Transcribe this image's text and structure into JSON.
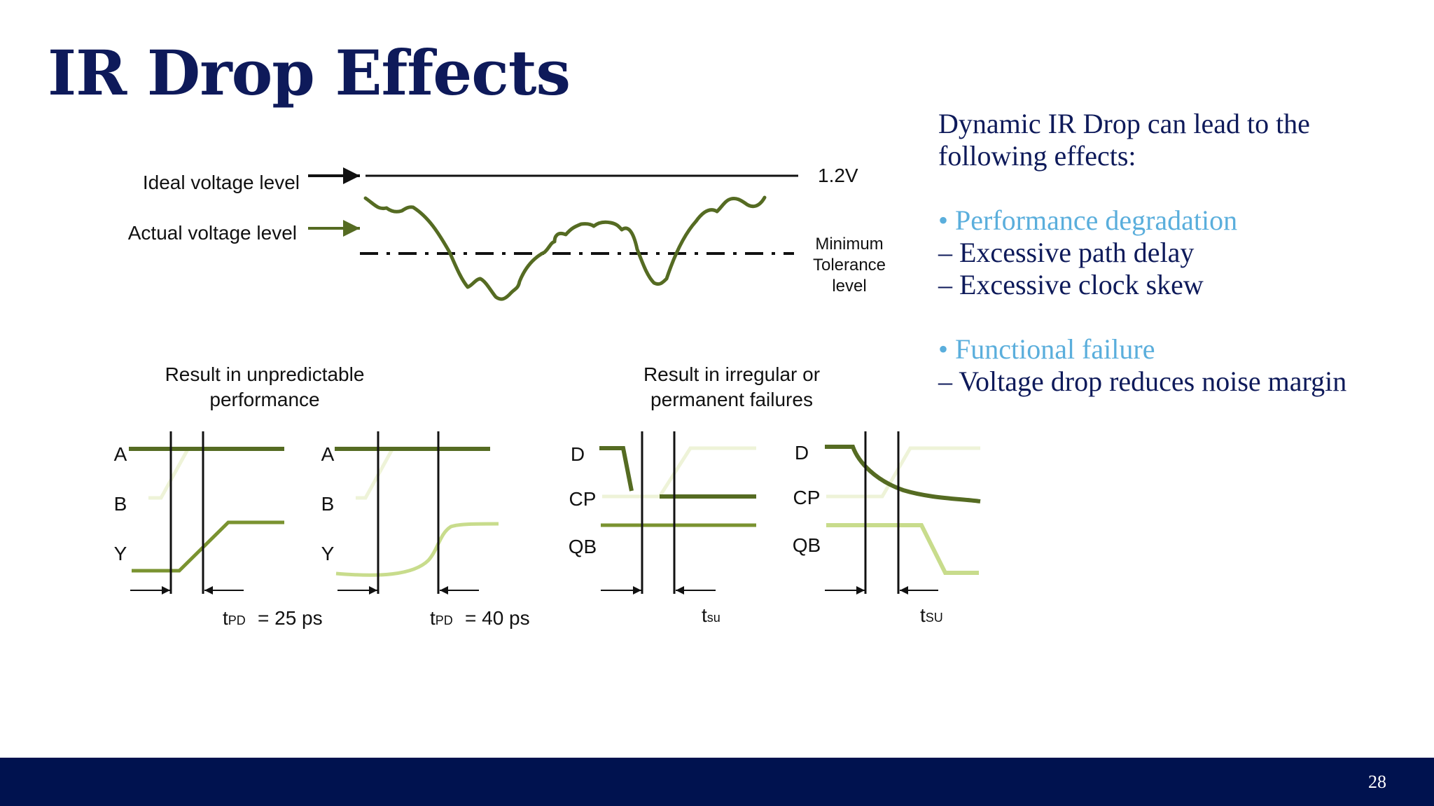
{
  "slide": {
    "title": "IR Drop Effects",
    "page_number": "28"
  },
  "voltage_diagram": {
    "ideal_label": "Ideal voltage level",
    "actual_label": "Actual voltage level",
    "ideal_value": "1.2V",
    "min_tolerance_lines": [
      "Minimum",
      "Tolerance",
      "level"
    ]
  },
  "panels": {
    "performance_caption": [
      "Result in unpredictable",
      "performance"
    ],
    "failure_caption": [
      "Result in irregular or",
      "permanent failures"
    ],
    "timing1": {
      "signals": [
        "A",
        "B",
        "Y"
      ],
      "tpd_sub": "PD",
      "tpd_value": "= 25 ps"
    },
    "timing2": {
      "signals": [
        "A",
        "B",
        "Y"
      ],
      "tpd_sub": "PD",
      "tpd_value": "= 40 ps"
    },
    "timing3": {
      "signals": [
        "D",
        "CP",
        "QB"
      ],
      "tsu_t": "t",
      "tsu_sub": "su"
    },
    "timing4": {
      "signals": [
        "D",
        "CP",
        "QB"
      ],
      "tsu_t": "t",
      "tsu_sub": "SU"
    }
  },
  "side_text": {
    "intro_line1": "Dynamic IR Drop can lead to the",
    "intro_line2": "following effects:",
    "bullet1": "• Performance degradation",
    "bullet1_sub1": "– Excessive path delay",
    "bullet1_sub2": "– Excessive clock skew",
    "bullet2": "• Functional failure",
    "bullet2_sub1": "– Voltage drop reduces noise margin"
  },
  "colors": {
    "title": "#0e1a5a",
    "accent": "#5aaedc",
    "footer": "#00124f",
    "dark_olive": "#556b22",
    "mid_olive": "#7a9330",
    "light_green": "#c8dc8c",
    "pale_green": "#eef3d8"
  }
}
